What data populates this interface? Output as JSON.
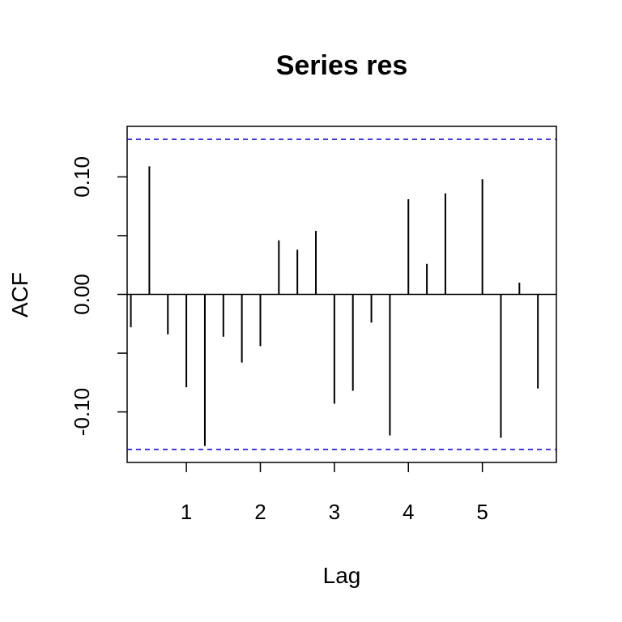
{
  "chart_data": {
    "type": "bar",
    "title": "Series res",
    "xlabel": "Lag",
    "ylabel": "ACF",
    "xlim": [
      0.2,
      6.0
    ],
    "ylim": [
      -0.143,
      0.143
    ],
    "x_ticks": [
      {
        "value": 1,
        "label": "1"
      },
      {
        "value": 2,
        "label": "2"
      },
      {
        "value": 3,
        "label": "3"
      },
      {
        "value": 4,
        "label": "4"
      },
      {
        "value": 5,
        "label": "5"
      }
    ],
    "y_ticks": [
      {
        "value": -0.1,
        "label": "-0.10"
      },
      {
        "value": -0.05,
        "label": ""
      },
      {
        "value": 0.0,
        "label": "0.00"
      },
      {
        "value": 0.05,
        "label": ""
      },
      {
        "value": 0.1,
        "label": "0.10"
      }
    ],
    "confidence_bound": 0.132,
    "confidence_color": "#0000cc",
    "bar_color": "#000000",
    "lags": [
      0.25,
      0.5,
      0.75,
      1.0,
      1.25,
      1.5,
      1.75,
      2.0,
      2.25,
      2.5,
      2.75,
      3.0,
      3.25,
      3.5,
      3.75,
      4.0,
      4.25,
      4.5,
      4.75,
      5.0,
      5.25,
      5.5,
      5.75
    ],
    "acf": [
      -0.028,
      0.109,
      -0.034,
      -0.079,
      -0.129,
      -0.036,
      -0.058,
      -0.044,
      0.046,
      0.038,
      0.054,
      -0.093,
      -0.082,
      -0.024,
      -0.12,
      0.081,
      0.026,
      0.086,
      0.0,
      0.098,
      -0.122,
      0.01,
      -0.08
    ]
  }
}
